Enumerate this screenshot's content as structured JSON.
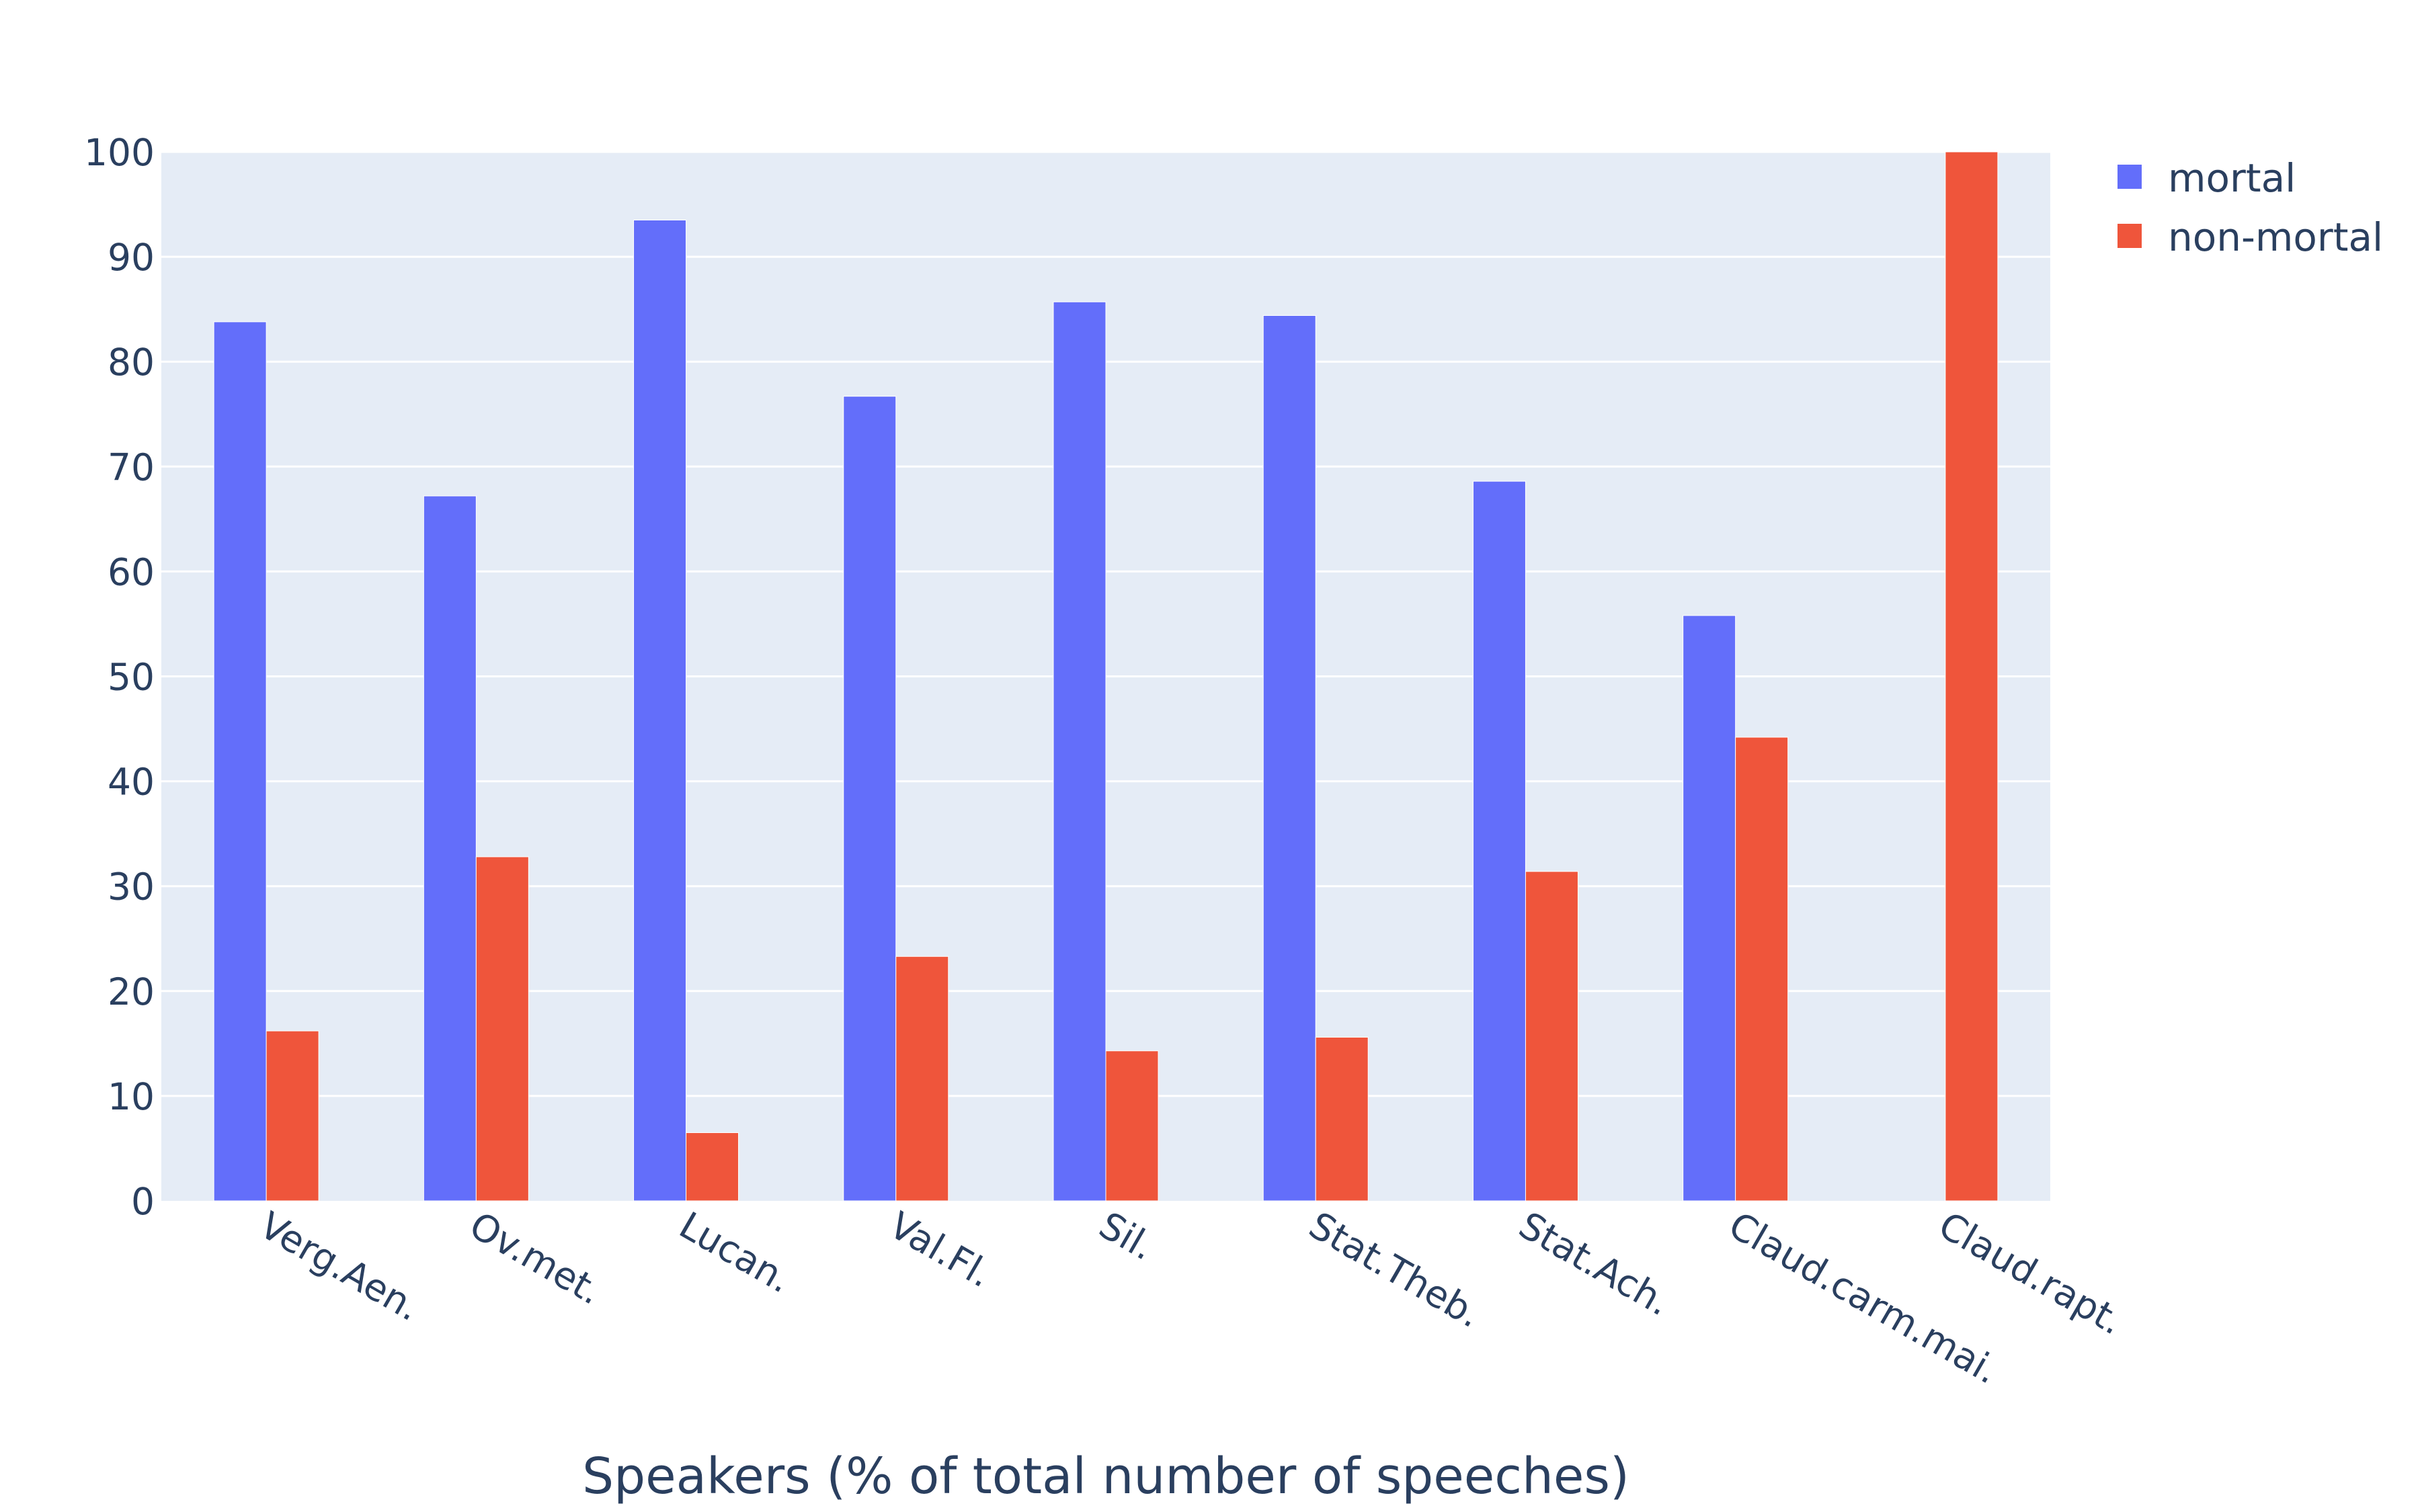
{
  "chart_data": {
    "type": "bar",
    "categories": [
      "Verg.Aen.",
      "Ov.met.",
      "Lucan.",
      "Val.Fl.",
      "Sil.",
      "Stat.Theb.",
      "Stat.Ach.",
      "Claud.carm.mai.",
      "Claud.rapt."
    ],
    "series": [
      {
        "name": "mortal",
        "color": "#636efa",
        "values": [
          83.8,
          67.2,
          93.5,
          76.7,
          85.7,
          84.4,
          68.6,
          55.8,
          0
        ]
      },
      {
        "name": "non-mortal",
        "color": "#ef553b",
        "values": [
          16.2,
          32.8,
          6.5,
          23.3,
          14.3,
          15.6,
          31.4,
          44.2,
          100
        ]
      }
    ],
    "title": "",
    "xlabel": "Speakers (% of total number of speeches)",
    "ylabel": "",
    "ylim": [
      0,
      100
    ],
    "yticks": [
      0,
      10,
      20,
      30,
      40,
      50,
      60,
      70,
      80,
      90,
      100
    ],
    "grid": true,
    "legend_position": "top-right"
  }
}
